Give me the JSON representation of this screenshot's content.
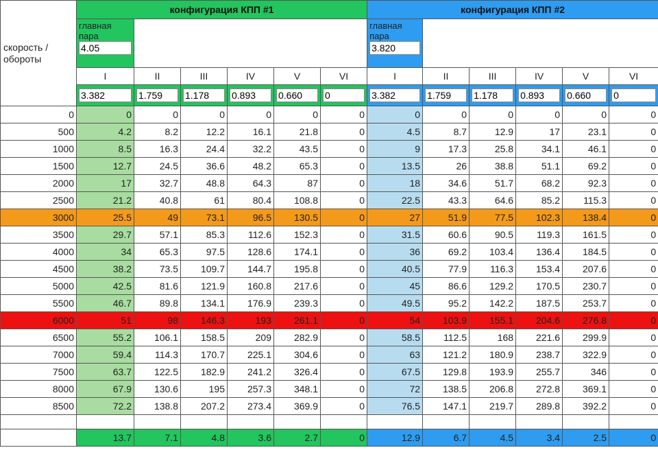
{
  "corner_label": "скорость /\nобороты",
  "config1": {
    "title": "конфигурация КПП #1",
    "main_pair_label": "главная\nпара",
    "main_pair_value": "4.05",
    "gear_ratios": [
      "3.382",
      "1.759",
      "1.178",
      "0.893",
      "0.660",
      "0"
    ],
    "footer": [
      "13.7",
      "7.1",
      "4.8",
      "3.6",
      "2.7",
      "0"
    ]
  },
  "config2": {
    "title": "конфигурация КПП #2",
    "main_pair_label": "главная\nпара",
    "main_pair_value": "3.820",
    "gear_ratios": [
      "3.382",
      "1.759",
      "1.178",
      "0.893",
      "0.660",
      "0"
    ],
    "footer": [
      "12.9",
      "6.7",
      "4.5",
      "3.4",
      "2.5",
      "0"
    ]
  },
  "gears": [
    "I",
    "II",
    "III",
    "IV",
    "V",
    "VI"
  ],
  "rows": [
    {
      "rpm": "0",
      "c1": [
        "0",
        "0",
        "0",
        "0",
        "0",
        "0"
      ],
      "c2": [
        "0",
        "0",
        "0",
        "0",
        "0",
        "0"
      ]
    },
    {
      "rpm": "500",
      "c1": [
        "4.2",
        "8.2",
        "12.2",
        "16.1",
        "21.8",
        "0"
      ],
      "c2": [
        "4.5",
        "8.7",
        "12.9",
        "17",
        "23.1",
        "0"
      ]
    },
    {
      "rpm": "1000",
      "c1": [
        "8.5",
        "16.3",
        "24.4",
        "32.2",
        "43.5",
        "0"
      ],
      "c2": [
        "9",
        "17.3",
        "25.8",
        "34.1",
        "46.1",
        "0"
      ]
    },
    {
      "rpm": "1500",
      "c1": [
        "12.7",
        "24.5",
        "36.6",
        "48.2",
        "65.3",
        "0"
      ],
      "c2": [
        "13.5",
        "26",
        "38.8",
        "51.1",
        "69.2",
        "0"
      ]
    },
    {
      "rpm": "2000",
      "c1": [
        "17",
        "32.7",
        "48.8",
        "64.3",
        "87",
        "0"
      ],
      "c2": [
        "18",
        "34.6",
        "51.7",
        "68.2",
        "92.3",
        "0"
      ]
    },
    {
      "rpm": "2500",
      "c1": [
        "21.2",
        "40.8",
        "61",
        "80.4",
        "108.8",
        "0"
      ],
      "c2": [
        "22.5",
        "43.3",
        "64.6",
        "85.2",
        "115.3",
        "0"
      ]
    },
    {
      "rpm": "3000",
      "c1": [
        "25.5",
        "49",
        "73.1",
        "96.5",
        "130.5",
        "0"
      ],
      "c2": [
        "27",
        "51.9",
        "77.5",
        "102.3",
        "138.4",
        "0"
      ],
      "highlight": "orange"
    },
    {
      "rpm": "3500",
      "c1": [
        "29.7",
        "57.1",
        "85.3",
        "112.6",
        "152.3",
        "0"
      ],
      "c2": [
        "31.5",
        "60.6",
        "90.5",
        "119.3",
        "161.5",
        "0"
      ]
    },
    {
      "rpm": "4000",
      "c1": [
        "34",
        "65.3",
        "97.5",
        "128.6",
        "174.1",
        "0"
      ],
      "c2": [
        "36",
        "69.2",
        "103.4",
        "136.4",
        "184.5",
        "0"
      ]
    },
    {
      "rpm": "4500",
      "c1": [
        "38.2",
        "73.5",
        "109.7",
        "144.7",
        "195.8",
        "0"
      ],
      "c2": [
        "40.5",
        "77.9",
        "116.3",
        "153.4",
        "207.6",
        "0"
      ]
    },
    {
      "rpm": "5000",
      "c1": [
        "42.5",
        "81.6",
        "121.9",
        "160.8",
        "217.6",
        "0"
      ],
      "c2": [
        "45",
        "86.6",
        "129.2",
        "170.5",
        "230.7",
        "0"
      ]
    },
    {
      "rpm": "5500",
      "c1": [
        "46.7",
        "89.8",
        "134.1",
        "176.9",
        "239.3",
        "0"
      ],
      "c2": [
        "49.5",
        "95.2",
        "142.2",
        "187.5",
        "253.7",
        "0"
      ]
    },
    {
      "rpm": "6000",
      "c1": [
        "51",
        "98",
        "146.3",
        "193",
        "261.1",
        "0"
      ],
      "c2": [
        "54",
        "103.9",
        "155.1",
        "204.6",
        "276.8",
        "0"
      ],
      "highlight": "red"
    },
    {
      "rpm": "6500",
      "c1": [
        "55.2",
        "106.1",
        "158.5",
        "209",
        "282.9",
        "0"
      ],
      "c2": [
        "58.5",
        "112.5",
        "168",
        "221.6",
        "299.9",
        "0"
      ]
    },
    {
      "rpm": "7000",
      "c1": [
        "59.4",
        "114.3",
        "170.7",
        "225.1",
        "304.6",
        "0"
      ],
      "c2": [
        "63",
        "121.2",
        "180.9",
        "238.7",
        "322.9",
        "0"
      ]
    },
    {
      "rpm": "7500",
      "c1": [
        "63.7",
        "122.5",
        "182.9",
        "241.2",
        "326.4",
        "0"
      ],
      "c2": [
        "67.5",
        "129.8",
        "193.9",
        "255.7",
        "346",
        "0"
      ]
    },
    {
      "rpm": "8000",
      "c1": [
        "67.9",
        "130.6",
        "195",
        "257.3",
        "348.1",
        "0"
      ],
      "c2": [
        "72",
        "138.5",
        "206.8",
        "272.8",
        "369.1",
        "0"
      ]
    },
    {
      "rpm": "8500",
      "c1": [
        "72.2",
        "138.8",
        "207.2",
        "273.4",
        "369.9",
        "0"
      ],
      "c2": [
        "76.5",
        "147.1",
        "219.7",
        "289.8",
        "392.2",
        "0"
      ]
    }
  ],
  "colors": {
    "green": "#22c55e",
    "green_light": "#a8dca0",
    "blue": "#2e9cf0",
    "blue_light": "#b8dcef",
    "orange": "#f49a1a",
    "red": "#ee1111"
  }
}
